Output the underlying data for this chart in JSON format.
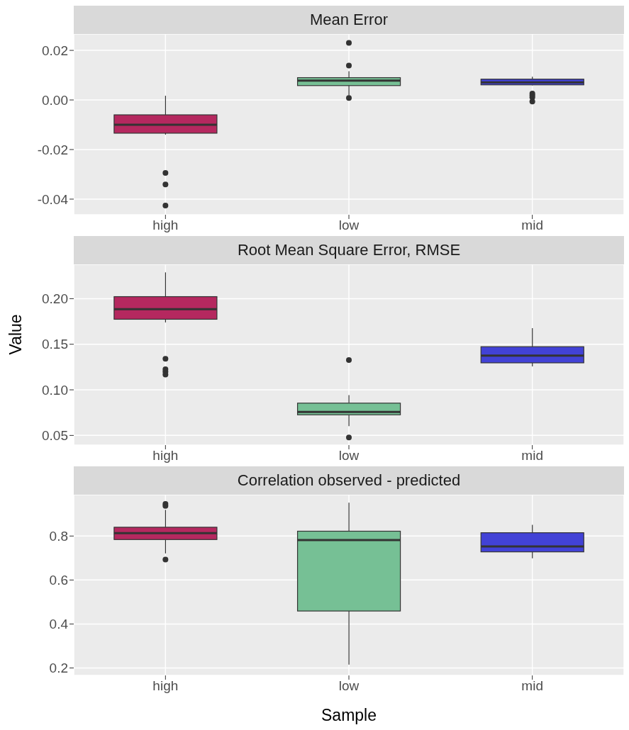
{
  "chart_data": [
    {
      "type": "box",
      "title": "Mean Error",
      "categories": [
        "high",
        "low",
        "mid"
      ],
      "colors": [
        "#b5285f",
        "#76c095",
        "#4242d6"
      ],
      "boxes": [
        {
          "low": -0.014,
          "q1": -0.0134,
          "median": -0.01,
          "q3": -0.006,
          "high": 0.0017,
          "outliers": [
            -0.0294,
            -0.0341,
            -0.0426
          ]
        },
        {
          "low": 0.0019,
          "q1": 0.0058,
          "median": 0.0078,
          "q3": 0.009,
          "high": 0.0116,
          "outliers": [
            0.023,
            0.0139,
            0.0008
          ]
        },
        {
          "low": 0.0059,
          "q1": 0.0061,
          "median": 0.0071,
          "q3": 0.0084,
          "high": 0.0094,
          "outliers": [
            0.0026,
            0.0019,
            0.0011,
            -0.0006
          ]
        }
      ],
      "ylim": [
        -0.0463,
        0.0266
      ],
      "yticks": [
        {
          "value": -0.04,
          "label": "-0.04"
        },
        {
          "value": -0.02,
          "label": "-0.02"
        },
        {
          "value": 0,
          "label": "0.00"
        },
        {
          "value": 0.02,
          "label": "0.02"
        }
      ],
      "grid": true
    },
    {
      "type": "box",
      "title": "Root Mean Square Error, RMSE",
      "ylabel": "Value",
      "categories": [
        "high",
        "low",
        "mid"
      ],
      "colors": [
        "#b5285f",
        "#76c095",
        "#4242d6"
      ],
      "boxes": [
        {
          "low": 0.1739,
          "q1": 0.1774,
          "median": 0.1885,
          "q3": 0.2022,
          "high": 0.2288,
          "outliers": [
            0.134,
            0.1226,
            0.1199,
            0.1168
          ]
        },
        {
          "low": 0.0602,
          "q1": 0.0726,
          "median": 0.0757,
          "q3": 0.0854,
          "high": 0.0942,
          "outliers": [
            0.1327,
            0.0478
          ]
        },
        {
          "low": 0.1257,
          "q1": 0.1296,
          "median": 0.1376,
          "q3": 0.1473,
          "high": 0.1677
        }
      ],
      "ylim": [
        0.0394,
        0.2376
      ],
      "yticks": [
        {
          "value": 0.05,
          "label": "0.05"
        },
        {
          "value": 0.1,
          "label": "0.10"
        },
        {
          "value": 0.15,
          "label": "0.15"
        },
        {
          "value": 0.2,
          "label": "0.20"
        }
      ],
      "grid": true
    },
    {
      "type": "box",
      "title": "Correlation observed - predicted",
      "xlabel": "Sample",
      "categories": [
        "high",
        "low",
        "mid"
      ],
      "colors": [
        "#b5285f",
        "#76c095",
        "#4242d6"
      ],
      "boxes": [
        {
          "low": 0.721,
          "q1": 0.784,
          "median": 0.813,
          "q3": 0.84,
          "high": 0.919,
          "outliers": [
            0.946,
            0.937,
            0.693
          ]
        },
        {
          "low": 0.215,
          "q1": 0.459,
          "median": 0.782,
          "q3": 0.822,
          "high": 0.952
        },
        {
          "low": 0.699,
          "q1": 0.728,
          "median": 0.753,
          "q3": 0.815,
          "high": 0.851
        }
      ],
      "ylim": [
        0.166,
        0.988
      ],
      "yticks": [
        0.2,
        0.4,
        0.6,
        0.8
      ],
      "grid": true
    }
  ]
}
